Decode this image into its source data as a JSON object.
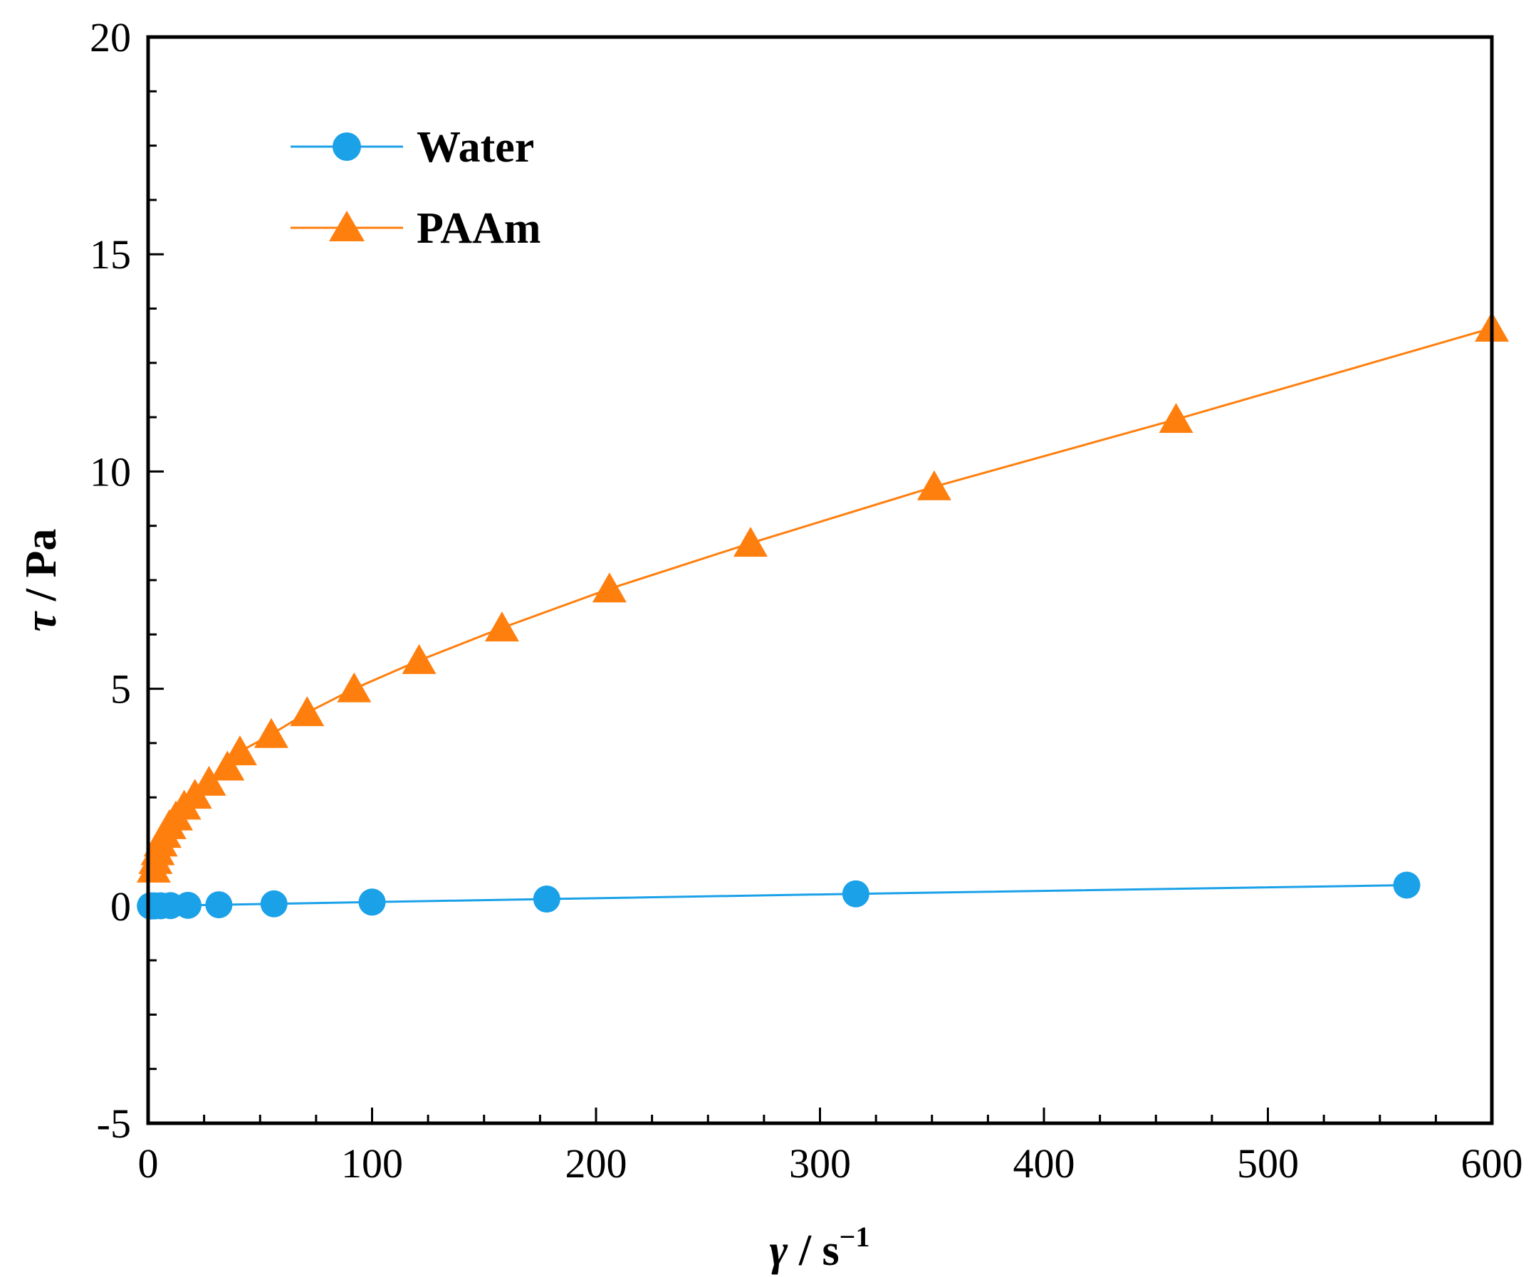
{
  "chart_data": {
    "type": "line",
    "title": "",
    "xlabel": {
      "symbol": "γ",
      "sep": " / s",
      "sup": "−1"
    },
    "ylabel": {
      "symbol": "τ",
      "sep": " / Pa"
    },
    "xlim": [
      0,
      600
    ],
    "ylim": [
      -5,
      20
    ],
    "x_ticks": [
      0,
      100,
      200,
      300,
      400,
      500,
      600
    ],
    "x_tick_labels": [
      "0",
      "100",
      "200",
      "300",
      "400",
      "500",
      "600"
    ],
    "y_ticks": [
      -5,
      0,
      5,
      10,
      15,
      20
    ],
    "y_tick_labels": [
      "-5",
      "0",
      "5",
      "10",
      "15",
      "20"
    ],
    "grid": false,
    "legend_position": "top-left",
    "series": [
      {
        "name": "Water",
        "marker": "circle",
        "color": "#1AA1E8",
        "x": [
          1,
          1.78,
          3.16,
          5.62,
          10,
          17.8,
          31.6,
          56.2,
          100,
          178,
          316,
          562
        ],
        "y": [
          0.001,
          0.002,
          0.003,
          0.005,
          0.009,
          0.016,
          0.028,
          0.05,
          0.09,
          0.16,
          0.28,
          0.48
        ]
      },
      {
        "name": "PAAm",
        "marker": "triangle",
        "color": "#FF7F0E",
        "x": [
          2.5,
          3.3,
          4.3,
          5.6,
          7.3,
          9.5,
          12.4,
          16.1,
          20.9,
          27.2,
          35.4,
          41,
          55,
          71,
          92,
          121,
          158,
          206,
          269,
          351,
          459,
          600
        ],
        "y": [
          0.85,
          1.05,
          1.25,
          1.45,
          1.65,
          1.85,
          2.05,
          2.3,
          2.55,
          2.85,
          3.2,
          3.55,
          3.95,
          4.45,
          5.0,
          5.65,
          6.4,
          7.3,
          8.35,
          9.65,
          11.2,
          13.3
        ]
      }
    ]
  }
}
